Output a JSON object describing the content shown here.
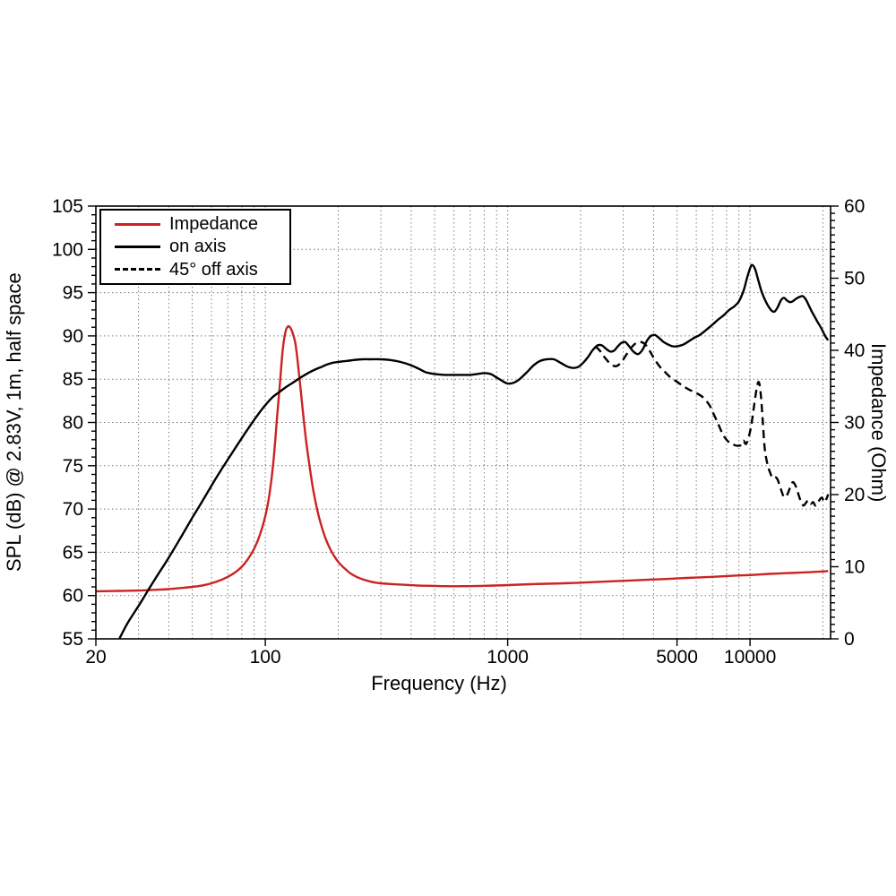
{
  "chart_data": {
    "type": "line",
    "title": "",
    "xlabel": "Frequency (Hz)",
    "ylabel_left": "SPL (dB) @ 2.83V, 1m, half space",
    "ylabel_right": "Impedance (Ohm)",
    "x_scale": "log",
    "x_range": [
      20,
      21500
    ],
    "y_left_range": [
      55,
      105
    ],
    "y_right_range": [
      0,
      60
    ],
    "grid": "dotted",
    "grid_color": "#7a7a7a",
    "x_ticks_labeled": [
      {
        "value": 20,
        "label": "20"
      },
      {
        "value": 100,
        "label": "100"
      },
      {
        "value": 1000,
        "label": "1000"
      },
      {
        "value": 5000,
        "label": "5000"
      },
      {
        "value": 10000,
        "label": "10000"
      }
    ],
    "x_grid": [
      30,
      40,
      50,
      60,
      70,
      80,
      90,
      100,
      200,
      300,
      400,
      500,
      600,
      700,
      800,
      900,
      1000,
      2000,
      3000,
      4000,
      5000,
      6000,
      7000,
      8000,
      9000,
      10000,
      20000
    ],
    "y_left_ticks_labeled": [
      55,
      60,
      65,
      70,
      75,
      80,
      85,
      90,
      95,
      100,
      105
    ],
    "y_left_minor_step": 1,
    "y_left_grid": [
      60,
      65,
      70,
      75,
      80,
      85,
      90,
      95,
      100
    ],
    "y_right_ticks_labeled": [
      0,
      10,
      20,
      30,
      40,
      50,
      60
    ],
    "y_right_minor_step": 1,
    "legend": {
      "position": "top-left"
    },
    "series": [
      {
        "name": "Impedance",
        "axis": "right",
        "color": "#cc2222",
        "style": "solid",
        "points": [
          [
            20,
            6.6
          ],
          [
            25,
            6.65
          ],
          [
            30,
            6.7
          ],
          [
            35,
            6.8
          ],
          [
            40,
            6.9
          ],
          [
            45,
            7.05
          ],
          [
            50,
            7.2
          ],
          [
            55,
            7.4
          ],
          [
            60,
            7.7
          ],
          [
            65,
            8.1
          ],
          [
            70,
            8.6
          ],
          [
            75,
            9.2
          ],
          [
            80,
            10
          ],
          [
            85,
            11.1
          ],
          [
            90,
            12.5
          ],
          [
            95,
            14.4
          ],
          [
            100,
            17
          ],
          [
            104,
            20
          ],
          [
            108,
            24.5
          ],
          [
            112,
            31
          ],
          [
            115,
            35.5
          ],
          [
            118,
            40
          ],
          [
            121,
            42.5
          ],
          [
            124,
            43.3
          ],
          [
            127,
            43.1
          ],
          [
            130,
            42.3
          ],
          [
            133,
            41
          ],
          [
            136,
            38.5
          ],
          [
            140,
            34.5
          ],
          [
            144,
            30.5
          ],
          [
            148,
            27
          ],
          [
            153,
            23.5
          ],
          [
            158,
            20.5
          ],
          [
            164,
            17.8
          ],
          [
            170,
            15.8
          ],
          [
            177,
            14
          ],
          [
            185,
            12.5
          ],
          [
            193,
            11.4
          ],
          [
            202,
            10.5
          ],
          [
            212,
            9.8
          ],
          [
            224,
            9.1
          ],
          [
            238,
            8.6
          ],
          [
            255,
            8.2
          ],
          [
            275,
            7.9
          ],
          [
            300,
            7.7
          ],
          [
            330,
            7.6
          ],
          [
            370,
            7.5
          ],
          [
            420,
            7.4
          ],
          [
            480,
            7.35
          ],
          [
            550,
            7.3
          ],
          [
            650,
            7.3
          ],
          [
            800,
            7.35
          ],
          [
            1000,
            7.45
          ],
          [
            1300,
            7.6
          ],
          [
            1700,
            7.7
          ],
          [
            2200,
            7.85
          ],
          [
            2800,
            8
          ],
          [
            3500,
            8.15
          ],
          [
            4500,
            8.3
          ],
          [
            5500,
            8.45
          ],
          [
            7000,
            8.6
          ],
          [
            8500,
            8.75
          ],
          [
            10000,
            8.85
          ],
          [
            12000,
            9
          ],
          [
            14000,
            9.1
          ],
          [
            16500,
            9.2
          ],
          [
            19000,
            9.3
          ],
          [
            21000,
            9.4
          ]
        ]
      },
      {
        "name": "on axis",
        "axis": "left",
        "color": "#000000",
        "style": "solid",
        "points": [
          [
            25,
            55
          ],
          [
            27,
            56.8
          ],
          [
            30,
            58.8
          ],
          [
            33,
            60.7
          ],
          [
            36,
            62.4
          ],
          [
            40,
            64.4
          ],
          [
            45,
            66.8
          ],
          [
            50,
            69
          ],
          [
            55,
            70.9
          ],
          [
            60,
            72.7
          ],
          [
            65,
            74.3
          ],
          [
            70,
            75.7
          ],
          [
            75,
            77
          ],
          [
            80,
            78.2
          ],
          [
            85,
            79.3
          ],
          [
            90,
            80.3
          ],
          [
            95,
            81.2
          ],
          [
            100,
            82
          ],
          [
            107,
            82.9
          ],
          [
            114,
            83.5
          ],
          [
            122,
            84.1
          ],
          [
            130,
            84.6
          ],
          [
            140,
            85.2
          ],
          [
            150,
            85.7
          ],
          [
            160,
            86.1
          ],
          [
            170,
            86.4
          ],
          [
            180,
            86.7
          ],
          [
            190,
            86.9
          ],
          [
            200,
            87
          ],
          [
            215,
            87.1
          ],
          [
            230,
            87.2
          ],
          [
            250,
            87.3
          ],
          [
            270,
            87.3
          ],
          [
            300,
            87.3
          ],
          [
            330,
            87.2
          ],
          [
            360,
            87
          ],
          [
            400,
            86.6
          ],
          [
            430,
            86.2
          ],
          [
            460,
            85.8
          ],
          [
            500,
            85.6
          ],
          [
            550,
            85.5
          ],
          [
            600,
            85.5
          ],
          [
            650,
            85.5
          ],
          [
            700,
            85.5
          ],
          [
            750,
            85.6
          ],
          [
            800,
            85.7
          ],
          [
            850,
            85.6
          ],
          [
            900,
            85.2
          ],
          [
            950,
            84.8
          ],
          [
            1000,
            84.5
          ],
          [
            1060,
            84.6
          ],
          [
            1120,
            85
          ],
          [
            1200,
            85.8
          ],
          [
            1280,
            86.6
          ],
          [
            1360,
            87.1
          ],
          [
            1450,
            87.3
          ],
          [
            1550,
            87.3
          ],
          [
            1650,
            86.9
          ],
          [
            1750,
            86.5
          ],
          [
            1850,
            86.3
          ],
          [
            1950,
            86.4
          ],
          [
            2050,
            86.9
          ],
          [
            2150,
            87.6
          ],
          [
            2250,
            88.4
          ],
          [
            2350,
            88.9
          ],
          [
            2450,
            88.9
          ],
          [
            2550,
            88.5
          ],
          [
            2650,
            88.2
          ],
          [
            2750,
            88.3
          ],
          [
            2850,
            88.8
          ],
          [
            2950,
            89.2
          ],
          [
            3050,
            89.3
          ],
          [
            3150,
            88.9
          ],
          [
            3300,
            88.2
          ],
          [
            3450,
            87.9
          ],
          [
            3600,
            88.4
          ],
          [
            3750,
            89.4
          ],
          [
            3900,
            90
          ],
          [
            4050,
            90.1
          ],
          [
            4200,
            89.8
          ],
          [
            4400,
            89.3
          ],
          [
            4600,
            89
          ],
          [
            4800,
            88.8
          ],
          [
            5000,
            88.8
          ],
          [
            5300,
            89
          ],
          [
            5600,
            89.4
          ],
          [
            5900,
            89.8
          ],
          [
            6200,
            90.1
          ],
          [
            6600,
            90.7
          ],
          [
            7000,
            91.3
          ],
          [
            7400,
            91.9
          ],
          [
            7800,
            92.4
          ],
          [
            8200,
            93
          ],
          [
            8600,
            93.4
          ],
          [
            9000,
            94
          ],
          [
            9400,
            95.2
          ],
          [
            9700,
            96.6
          ],
          [
            10000,
            97.8
          ],
          [
            10200,
            98.2
          ],
          [
            10500,
            97.7
          ],
          [
            10800,
            96.5
          ],
          [
            11200,
            95
          ],
          [
            11700,
            93.8
          ],
          [
            12200,
            93
          ],
          [
            12600,
            92.8
          ],
          [
            13000,
            93.3
          ],
          [
            13400,
            94.1
          ],
          [
            13800,
            94.4
          ],
          [
            14200,
            94.1
          ],
          [
            14600,
            93.9
          ],
          [
            15000,
            94
          ],
          [
            15500,
            94.3
          ],
          [
            16000,
            94.5
          ],
          [
            16500,
            94.6
          ],
          [
            17000,
            94.2
          ],
          [
            17500,
            93.5
          ],
          [
            18000,
            92.8
          ],
          [
            18500,
            92.2
          ],
          [
            19000,
            91.6
          ],
          [
            19500,
            91.1
          ],
          [
            20000,
            90.5
          ],
          [
            20500,
            89.9
          ],
          [
            21000,
            89.5
          ]
        ]
      },
      {
        "name": "45° off axis",
        "axis": "left",
        "color": "#000000",
        "style": "dashed",
        "points": [
          [
            2300,
            88.8
          ],
          [
            2400,
            88.3
          ],
          [
            2500,
            87.6
          ],
          [
            2650,
            86.8
          ],
          [
            2800,
            86.5
          ],
          [
            2950,
            87
          ],
          [
            3100,
            87.9
          ],
          [
            3250,
            88.7
          ],
          [
            3400,
            89.2
          ],
          [
            3550,
            89.3
          ],
          [
            3700,
            89
          ],
          [
            3850,
            88.3
          ],
          [
            4000,
            87.5
          ],
          [
            4200,
            86.6
          ],
          [
            4400,
            86
          ],
          [
            4700,
            85.2
          ],
          [
            5000,
            84.7
          ],
          [
            5300,
            84.2
          ],
          [
            5600,
            83.8
          ],
          [
            6000,
            83.4
          ],
          [
            6400,
            82.9
          ],
          [
            6800,
            82
          ],
          [
            7100,
            80.9
          ],
          [
            7400,
            79.8
          ],
          [
            7700,
            78.7
          ],
          [
            8000,
            78
          ],
          [
            8300,
            77.6
          ],
          [
            8600,
            77.4
          ],
          [
            8900,
            77.3
          ],
          [
            9200,
            77.4
          ],
          [
            9400,
            77.9
          ],
          [
            9600,
            77.5
          ],
          [
            9800,
            78
          ],
          [
            10100,
            79.5
          ],
          [
            10400,
            82
          ],
          [
            10700,
            84.2
          ],
          [
            10900,
            84.6
          ],
          [
            11100,
            83
          ],
          [
            11300,
            80
          ],
          [
            11500,
            77
          ],
          [
            11800,
            75.2
          ],
          [
            12100,
            74.2
          ],
          [
            12400,
            73.6
          ],
          [
            12700,
            73.7
          ],
          [
            13000,
            73.4
          ],
          [
            13400,
            72.3
          ],
          [
            13800,
            71.4
          ],
          [
            14200,
            71.6
          ],
          [
            14600,
            72.4
          ],
          [
            15000,
            73.1
          ],
          [
            15400,
            72.7
          ],
          [
            15800,
            71.8
          ],
          [
            16200,
            70.9
          ],
          [
            16600,
            70.4
          ],
          [
            17000,
            70.7
          ],
          [
            17400,
            71
          ],
          [
            17800,
            70.6
          ],
          [
            18200,
            70.8
          ],
          [
            18600,
            70.4
          ],
          [
            19000,
            70.6
          ],
          [
            19400,
            71.1
          ],
          [
            19800,
            71.3
          ],
          [
            20300,
            70.8
          ],
          [
            20700,
            71.2
          ],
          [
            21000,
            71.7
          ]
        ]
      }
    ]
  }
}
